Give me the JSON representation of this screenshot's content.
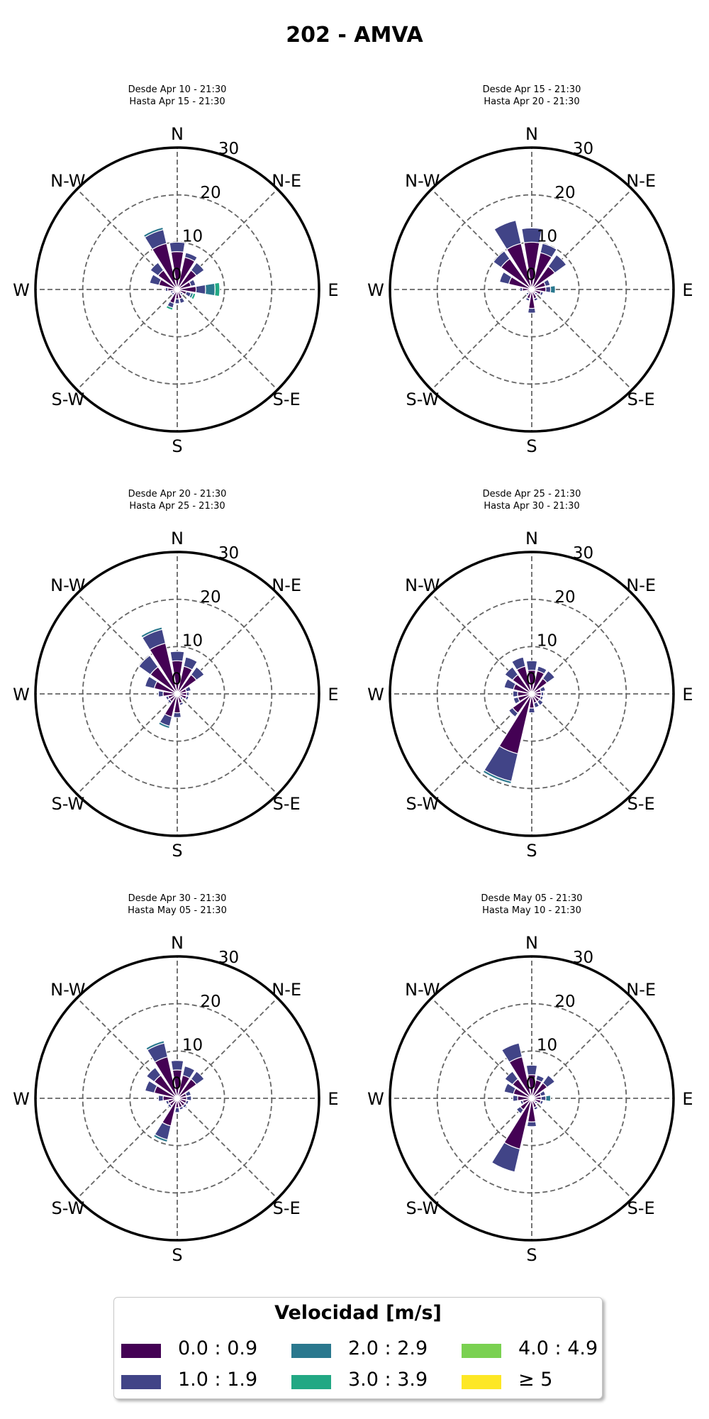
{
  "title": "202 - AMVA",
  "chart_data": {
    "type": "windrose",
    "legend_title": "Velocidad [m/s]",
    "speed_bins": [
      {
        "label": "0.0 : 0.9",
        "color": "#440154"
      },
      {
        "label": "1.0 : 1.9",
        "color": "#414487"
      },
      {
        "label": "2.0 : 2.9",
        "color": "#2a788e"
      },
      {
        "label": "3.0 : 3.9",
        "color": "#22a884"
      },
      {
        "label": "4.0 : 4.9",
        "color": "#7ad151"
      },
      {
        "label": "≥  5",
        "color": "#fde725"
      }
    ],
    "directions": [
      "N",
      "NNE",
      "NE",
      "ENE",
      "E",
      "ESE",
      "SE",
      "SSE",
      "S",
      "SSW",
      "SW",
      "WSW",
      "W",
      "WNW",
      "NW",
      "NNW"
    ],
    "compass_labels": [
      "N",
      "N-E",
      "E",
      "S-E",
      "S",
      "S-W",
      "W",
      "N-W"
    ],
    "radial_ticks": [
      0,
      10,
      20,
      30
    ],
    "rmax": 30,
    "panels": [
      {
        "subtitle_1": "Desde Apr 10 - 21:30",
        "subtitle_2": "Hasta Apr 15 - 21:30",
        "values": [
          [
            8,
            2,
            0,
            0
          ],
          [
            7,
            1,
            0,
            0
          ],
          [
            5,
            2,
            0,
            0
          ],
          [
            3,
            1,
            0,
            0
          ],
          [
            4,
            2,
            2,
            1
          ],
          [
            2,
            1,
            0.5,
            0.5
          ],
          [
            1,
            0.5,
            0,
            0
          ],
          [
            2,
            1,
            0,
            0
          ],
          [
            2,
            1,
            0,
            0
          ],
          [
            3,
            1,
            0,
            0.5
          ],
          [
            1,
            0.5,
            0,
            0
          ],
          [
            1,
            0.5,
            0,
            0
          ],
          [
            2,
            0.5,
            0,
            0
          ],
          [
            4,
            2,
            0,
            0
          ],
          [
            5,
            2,
            0,
            0
          ],
          [
            10,
            3,
            0.5,
            0
          ]
        ]
      },
      {
        "subtitle_1": "Desde Apr 15 - 21:30",
        "subtitle_2": "Hasta Apr 20 - 21:30",
        "values": [
          [
            10,
            3,
            0,
            0
          ],
          [
            8,
            2,
            0,
            0
          ],
          [
            6,
            3,
            0,
            0
          ],
          [
            3,
            1,
            0,
            0
          ],
          [
            3,
            1,
            1,
            0
          ],
          [
            2,
            0.5,
            0,
            0
          ],
          [
            1,
            0.5,
            0,
            0
          ],
          [
            2,
            0.5,
            0,
            0
          ],
          [
            4,
            1,
            0,
            0
          ],
          [
            2,
            0.5,
            0,
            0
          ],
          [
            1,
            0.5,
            0,
            0
          ],
          [
            1,
            0,
            0,
            0
          ],
          [
            2,
            0.5,
            0,
            0
          ],
          [
            5,
            2,
            0,
            0
          ],
          [
            8,
            2,
            0,
            0
          ],
          [
            10,
            5,
            0,
            0
          ]
        ]
      },
      {
        "subtitle_1": "Desde Apr 20 - 21:30",
        "subtitle_2": "Hasta Apr 25 - 21:30",
        "values": [
          [
            7,
            2,
            0,
            0
          ],
          [
            6,
            2,
            0,
            0
          ],
          [
            5,
            2,
            0,
            0
          ],
          [
            2,
            1,
            0,
            0
          ],
          [
            2,
            0.5,
            0,
            0
          ],
          [
            2,
            0.5,
            0,
            0
          ],
          [
            1,
            0.5,
            0,
            0
          ],
          [
            2,
            0.5,
            0,
            0
          ],
          [
            4,
            1,
            0,
            0
          ],
          [
            5,
            2,
            0.5,
            0
          ],
          [
            2,
            0.5,
            0,
            0
          ],
          [
            2,
            0.5,
            0,
            0
          ],
          [
            3,
            1,
            0,
            0
          ],
          [
            5,
            2,
            0,
            0
          ],
          [
            7,
            3,
            0,
            0
          ],
          [
            11,
            3,
            0.5,
            0
          ]
        ]
      },
      {
        "subtitle_1": "Desde Apr 25 - 21:30",
        "subtitle_2": "Hasta Apr 30 - 21:30",
        "values": [
          [
            5,
            2,
            0,
            0
          ],
          [
            5,
            1,
            0,
            0
          ],
          [
            4,
            2,
            0,
            0
          ],
          [
            2,
            1,
            0,
            0
          ],
          [
            2,
            0.5,
            0,
            0
          ],
          [
            2,
            0.5,
            0,
            0
          ],
          [
            2,
            1,
            0,
            0
          ],
          [
            2,
            1,
            0,
            0
          ],
          [
            3,
            1,
            0,
            0
          ],
          [
            13,
            6,
            0.5,
            0
          ],
          [
            5,
            1,
            0,
            0
          ],
          [
            3,
            1,
            0,
            0
          ],
          [
            3,
            1,
            0,
            0
          ],
          [
            4,
            2,
            0,
            0
          ],
          [
            5,
            2,
            0,
            0
          ],
          [
            6,
            2,
            0,
            0
          ]
        ]
      },
      {
        "subtitle_1": "Desde Apr 30 - 21:30",
        "subtitle_2": "Hasta May 05 - 21:30",
        "values": [
          [
            6,
            2,
            0,
            0
          ],
          [
            5,
            2,
            0,
            0
          ],
          [
            5,
            2,
            0,
            0
          ],
          [
            2,
            1,
            0,
            0
          ],
          [
            2,
            1,
            0,
            0
          ],
          [
            2,
            0.5,
            0,
            0
          ],
          [
            2,
            0.5,
            0,
            0
          ],
          [
            2,
            0.5,
            0,
            0
          ],
          [
            2,
            1,
            0,
            0
          ],
          [
            6,
            3,
            0.5,
            0
          ],
          [
            2,
            0.5,
            0,
            0
          ],
          [
            2,
            0.5,
            0,
            0
          ],
          [
            3,
            1,
            0,
            0
          ],
          [
            5,
            2,
            0,
            0
          ],
          [
            6,
            2,
            0,
            0
          ],
          [
            9,
            3,
            0.5,
            0
          ]
        ]
      },
      {
        "subtitle_1": "Desde May 05 - 21:30",
        "subtitle_2": "Hasta May 10 - 21:30",
        "values": [
          [
            5,
            2,
            0,
            0
          ],
          [
            4,
            1,
            0,
            0
          ],
          [
            4,
            2,
            0,
            0
          ],
          [
            2,
            1,
            0,
            0
          ],
          [
            2,
            1,
            1,
            0
          ],
          [
            2,
            0.5,
            0,
            0
          ],
          [
            1,
            0.5,
            0,
            0
          ],
          [
            2,
            0.5,
            0,
            0
          ],
          [
            5,
            1,
            0,
            0
          ],
          [
            11,
            5,
            0,
            0
          ],
          [
            3,
            1,
            0,
            0
          ],
          [
            2,
            0.5,
            0,
            0
          ],
          [
            3,
            1,
            0,
            0
          ],
          [
            4,
            2,
            0,
            0
          ],
          [
            5,
            2,
            0,
            0
          ],
          [
            9,
            3,
            0,
            0
          ]
        ]
      }
    ]
  }
}
